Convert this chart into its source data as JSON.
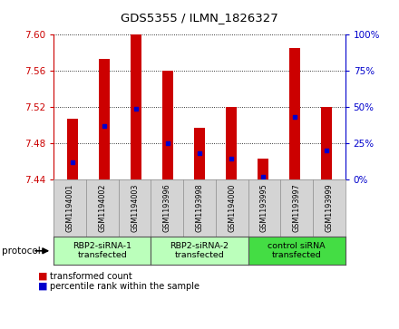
{
  "title": "GDS5355 / ILMN_1826327",
  "samples": [
    "GSM1194001",
    "GSM1194002",
    "GSM1194003",
    "GSM1193996",
    "GSM1193998",
    "GSM1194000",
    "GSM1193995",
    "GSM1193997",
    "GSM1193999"
  ],
  "transformed_counts": [
    7.507,
    7.573,
    7.6,
    7.56,
    7.497,
    7.52,
    7.463,
    7.585,
    7.52
  ],
  "percentile_ranks": [
    12,
    37,
    49,
    25,
    18,
    14,
    2,
    43,
    20
  ],
  "y_min": 7.44,
  "y_max": 7.6,
  "y_ticks": [
    7.44,
    7.48,
    7.52,
    7.56,
    7.6
  ],
  "right_y_ticks": [
    0,
    25,
    50,
    75,
    100
  ],
  "bar_color": "#cc0000",
  "percentile_color": "#0000cc",
  "groups": [
    {
      "label": "RBP2-siRNA-1\ntransfected",
      "indices": [
        0,
        1,
        2
      ],
      "color": "#bbffbb"
    },
    {
      "label": "RBP2-siRNA-2\ntransfected",
      "indices": [
        3,
        4,
        5
      ],
      "color": "#bbffbb"
    },
    {
      "label": "control siRNA\ntransfected",
      "indices": [
        6,
        7,
        8
      ],
      "color": "#44dd44"
    }
  ],
  "legend_red_label": "transformed count",
  "legend_blue_label": "percentile rank within the sample",
  "protocol_label": "protocol",
  "bar_width": 0.35,
  "axis_color_left": "#cc0000",
  "axis_color_right": "#0000cc",
  "background_color": "#ffffff"
}
